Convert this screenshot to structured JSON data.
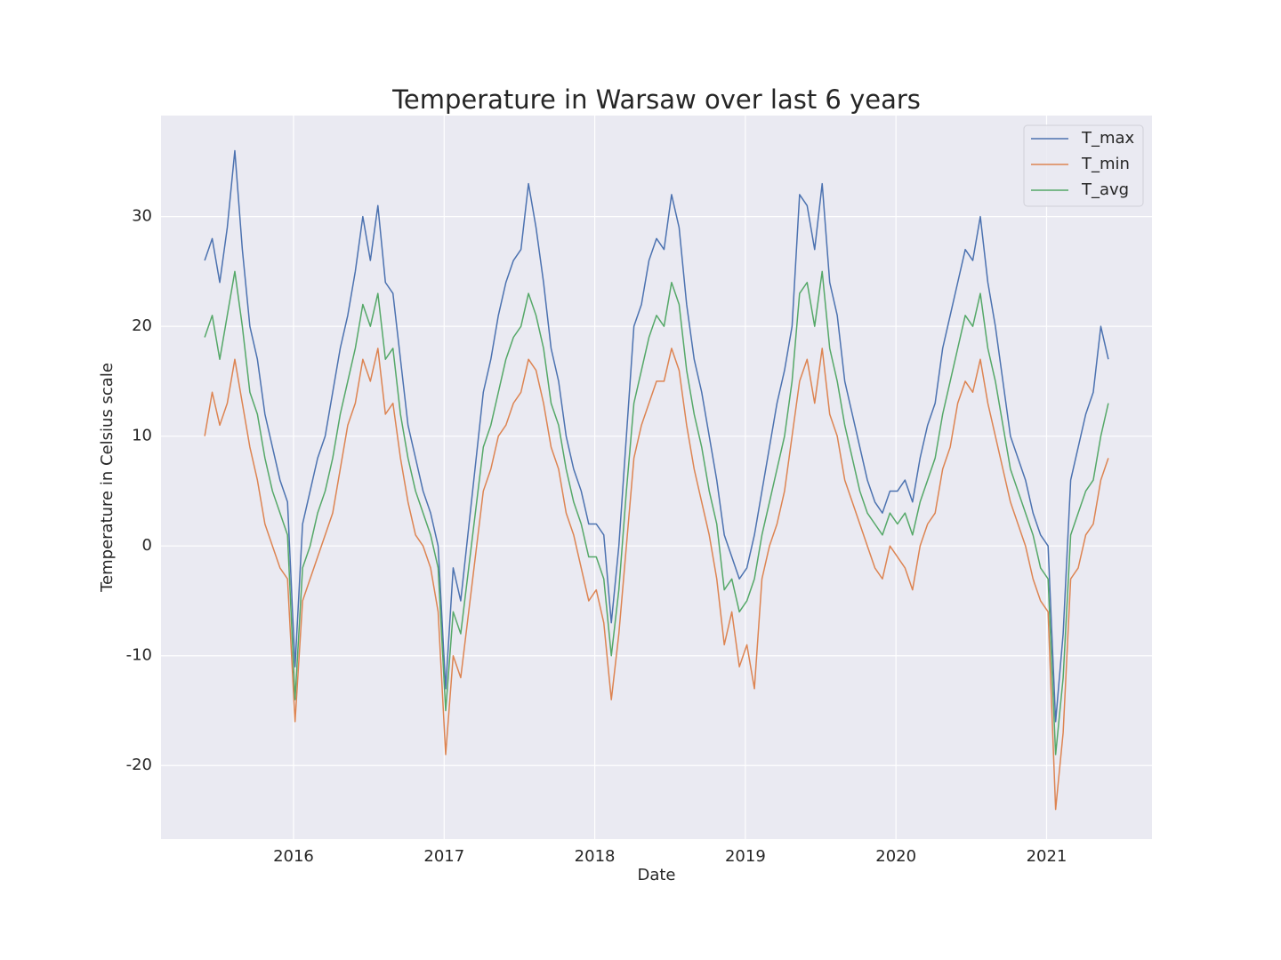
{
  "chart_data": {
    "type": "line",
    "title": "Temperature in Warsaw over last 6 years",
    "x_label": "Date",
    "y_label": "Temperature in Celsius scale",
    "x": [
      2015.41,
      2015.46,
      2015.51,
      2015.56,
      2015.61,
      2015.66,
      2015.71,
      2015.76,
      2015.81,
      2015.86,
      2015.91,
      2015.96,
      2016.01,
      2016.06,
      2016.11,
      2016.16,
      2016.21,
      2016.26,
      2016.31,
      2016.36,
      2016.41,
      2016.46,
      2016.51,
      2016.56,
      2016.61,
      2016.66,
      2016.71,
      2016.76,
      2016.81,
      2016.86,
      2016.91,
      2016.96,
      2017.01,
      2017.06,
      2017.11,
      2017.26,
      2017.31,
      2017.36,
      2017.41,
      2017.46,
      2017.51,
      2017.56,
      2017.61,
      2017.66,
      2017.71,
      2017.76,
      2017.81,
      2017.86,
      2017.91,
      2017.96,
      2018.01,
      2018.06,
      2018.11,
      2018.16,
      2018.21,
      2018.26,
      2018.31,
      2018.36,
      2018.41,
      2018.46,
      2018.51,
      2018.56,
      2018.61,
      2018.66,
      2018.71,
      2018.76,
      2018.81,
      2018.86,
      2018.91,
      2018.96,
      2019.01,
      2019.06,
      2019.11,
      2019.16,
      2019.21,
      2019.26,
      2019.31,
      2019.36,
      2019.41,
      2019.46,
      2019.51,
      2019.56,
      2019.61,
      2019.66,
      2019.71,
      2019.76,
      2019.81,
      2019.86,
      2019.91,
      2019.96,
      2020.01,
      2020.06,
      2020.11,
      2020.16,
      2020.21,
      2020.26,
      2020.31,
      2020.36,
      2020.41,
      2020.46,
      2020.51,
      2020.56,
      2020.61,
      2020.66,
      2020.71,
      2020.76,
      2020.81,
      2020.86,
      2020.91,
      2020.96,
      2021.01,
      2021.06,
      2021.11,
      2021.16,
      2021.21,
      2021.26,
      2021.31,
      2021.36,
      2021.41
    ],
    "series": [
      {
        "name": "T_max",
        "color": "#4c72b0",
        "values": [
          26,
          28,
          24,
          29,
          36,
          27,
          20,
          17,
          12,
          9,
          6,
          4,
          -11,
          2,
          5,
          8,
          10,
          14,
          18,
          21,
          25,
          30,
          26,
          31,
          24,
          23,
          17,
          11,
          8,
          5,
          3,
          0,
          -13,
          -2,
          -5,
          14,
          17,
          21,
          24,
          26,
          27,
          33,
          29,
          24,
          18,
          15,
          10,
          7,
          5,
          2,
          2,
          1,
          -7,
          0,
          10,
          20,
          22,
          26,
          28,
          27,
          32,
          29,
          22,
          17,
          14,
          10,
          6,
          1,
          -1,
          -3,
          -2,
          1,
          5,
          9,
          13,
          16,
          20,
          32,
          31,
          27,
          33,
          24,
          21,
          15,
          12,
          9,
          6,
          4,
          3,
          5,
          5,
          6,
          4,
          8,
          11,
          13,
          18,
          21,
          24,
          27,
          26,
          30,
          24,
          20,
          15,
          10,
          8,
          6,
          3,
          1,
          0,
          -16,
          -8,
          6,
          9,
          12,
          14,
          20,
          17
        ]
      },
      {
        "name": "T_min",
        "color": "#dd8452",
        "values": [
          10,
          14,
          11,
          13,
          17,
          13,
          9,
          6,
          2,
          0,
          -2,
          -3,
          -16,
          -5,
          -3,
          -1,
          1,
          3,
          7,
          11,
          13,
          17,
          15,
          18,
          12,
          13,
          8,
          4,
          1,
          0,
          -2,
          -6,
          -19,
          -10,
          -12,
          5,
          7,
          10,
          11,
          13,
          14,
          17,
          16,
          13,
          9,
          7,
          3,
          1,
          -2,
          -5,
          -4,
          -7,
          -14,
          -8,
          0,
          8,
          11,
          13,
          15,
          15,
          18,
          16,
          11,
          7,
          4,
          1,
          -3,
          -9,
          -6,
          -11,
          -9,
          -13,
          -3,
          0,
          2,
          5,
          10,
          15,
          17,
          13,
          18,
          12,
          10,
          6,
          4,
          2,
          0,
          -2,
          -3,
          0,
          -1,
          -2,
          -4,
          0,
          2,
          3,
          7,
          9,
          13,
          15,
          14,
          17,
          13,
          10,
          7,
          4,
          2,
          0,
          -3,
          -5,
          -6,
          -24,
          -17,
          -3,
          -2,
          1,
          2,
          6,
          8
        ]
      },
      {
        "name": "T_avg",
        "color": "#55a868",
        "values": [
          19,
          21,
          17,
          21,
          25,
          20,
          14,
          12,
          8,
          5,
          3,
          1,
          -14,
          -2,
          0,
          3,
          5,
          8,
          12,
          15,
          18,
          22,
          20,
          23,
          17,
          18,
          12,
          8,
          5,
          3,
          1,
          -2,
          -15,
          -6,
          -8,
          9,
          11,
          14,
          17,
          19,
          20,
          23,
          21,
          18,
          13,
          11,
          7,
          4,
          2,
          -1,
          -1,
          -3,
          -10,
          -4,
          5,
          13,
          16,
          19,
          21,
          20,
          24,
          22,
          16,
          12,
          9,
          5,
          2,
          -4,
          -3,
          -6,
          -5,
          -3,
          1,
          4,
          7,
          10,
          15,
          23,
          24,
          20,
          25,
          18,
          15,
          11,
          8,
          5,
          3,
          2,
          1,
          3,
          2,
          3,
          1,
          4,
          6,
          8,
          12,
          15,
          18,
          21,
          20,
          23,
          18,
          15,
          11,
          7,
          5,
          3,
          1,
          -2,
          -3,
          -19,
          -12,
          1,
          3,
          5,
          6,
          10,
          13
        ]
      }
    ],
    "xlim": [
      2015.12,
      2021.7
    ],
    "xticks": [
      2016,
      2017,
      2018,
      2019,
      2020,
      2021
    ],
    "ylim": [
      -26.7,
      39.2
    ],
    "yticks": [
      -20,
      -10,
      0,
      10,
      20,
      30
    ],
    "grid": true,
    "legend": "upper right"
  }
}
